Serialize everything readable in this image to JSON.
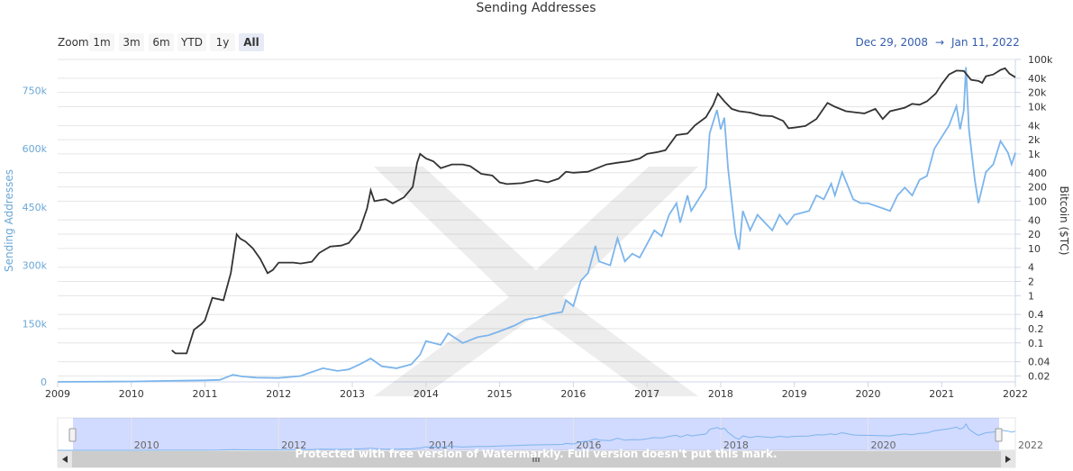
{
  "chart_data": {
    "type": "line",
    "title": "Sending Addresses",
    "range_selector": {
      "label": "Zoom",
      "buttons": [
        "1m",
        "3m",
        "6m",
        "YTD",
        "1y",
        "All"
      ],
      "active": "All"
    },
    "date_range": {
      "from": "Dec 29, 2008",
      "arrow": "→",
      "to": "Jan 11, 2022"
    },
    "x_axis": {
      "ticks": [
        "2009",
        "2010",
        "2011",
        "2012",
        "2013",
        "2014",
        "2015",
        "2016",
        "2017",
        "2018",
        "2019",
        "2020",
        "2021",
        "2022"
      ],
      "range": [
        2009,
        2022
      ]
    },
    "y_axis_left": {
      "label": "Sending Addresses",
      "ticks": [
        "0",
        "150k",
        "300k",
        "450k",
        "600k",
        "750k"
      ],
      "tick_values": [
        0,
        150000,
        300000,
        450000,
        600000,
        750000
      ],
      "range": [
        0,
        830000
      ],
      "color": "#7cb5ec"
    },
    "y_axis_right": {
      "label": "Bitcoin ($TC)",
      "scale": "log",
      "ticks": [
        "0.02",
        "0.04",
        "0.1",
        "0.2",
        "0.4",
        "1",
        "2",
        "4",
        "10",
        "20",
        "40",
        "100",
        "200",
        "400",
        "1k",
        "2k",
        "4k",
        "10k",
        "20k",
        "40k",
        "100k"
      ],
      "tick_values": [
        0.02,
        0.04,
        0.1,
        0.2,
        0.4,
        1,
        2,
        4,
        10,
        20,
        40,
        100,
        200,
        400,
        1000,
        2000,
        4000,
        10000,
        20000,
        40000,
        100000
      ],
      "range": [
        0.015,
        100000
      ],
      "color": "#333333"
    },
    "series": [
      {
        "name": "Sending Addresses",
        "axis": "left",
        "color": "#7cb5ec",
        "points": [
          [
            2009.0,
            0
          ],
          [
            2010.0,
            1000
          ],
          [
            2010.5,
            2500
          ],
          [
            2011.0,
            4000
          ],
          [
            2011.2,
            5000
          ],
          [
            2011.38,
            18000
          ],
          [
            2011.5,
            14000
          ],
          [
            2011.7,
            11000
          ],
          [
            2012.0,
            10000
          ],
          [
            2012.3,
            15000
          ],
          [
            2012.4,
            22000
          ],
          [
            2012.6,
            35000
          ],
          [
            2012.8,
            28000
          ],
          [
            2012.95,
            32000
          ],
          [
            2013.1,
            45000
          ],
          [
            2013.25,
            60000
          ],
          [
            2013.4,
            40000
          ],
          [
            2013.6,
            35000
          ],
          [
            2013.8,
            45000
          ],
          [
            2013.92,
            70000
          ],
          [
            2014.0,
            105000
          ],
          [
            2014.2,
            95000
          ],
          [
            2014.3,
            125000
          ],
          [
            2014.5,
            100000
          ],
          [
            2014.7,
            115000
          ],
          [
            2014.85,
            120000
          ],
          [
            2015.0,
            130000
          ],
          [
            2015.2,
            145000
          ],
          [
            2015.35,
            160000
          ],
          [
            2015.5,
            165000
          ],
          [
            2015.7,
            175000
          ],
          [
            2015.85,
            180000
          ],
          [
            2015.9,
            210000
          ],
          [
            2016.0,
            195000
          ],
          [
            2016.1,
            260000
          ],
          [
            2016.2,
            280000
          ],
          [
            2016.3,
            350000
          ],
          [
            2016.35,
            310000
          ],
          [
            2016.5,
            300000
          ],
          [
            2016.6,
            370000
          ],
          [
            2016.7,
            310000
          ],
          [
            2016.8,
            330000
          ],
          [
            2016.9,
            320000
          ],
          [
            2017.0,
            355000
          ],
          [
            2017.1,
            390000
          ],
          [
            2017.2,
            375000
          ],
          [
            2017.3,
            430000
          ],
          [
            2017.4,
            460000
          ],
          [
            2017.45,
            410000
          ],
          [
            2017.55,
            480000
          ],
          [
            2017.6,
            440000
          ],
          [
            2017.7,
            470000
          ],
          [
            2017.8,
            500000
          ],
          [
            2017.85,
            640000
          ],
          [
            2017.95,
            700000
          ],
          [
            2018.0,
            650000
          ],
          [
            2018.05,
            680000
          ],
          [
            2018.1,
            550000
          ],
          [
            2018.2,
            380000
          ],
          [
            2018.25,
            340000
          ],
          [
            2018.3,
            440000
          ],
          [
            2018.4,
            390000
          ],
          [
            2018.5,
            430000
          ],
          [
            2018.6,
            410000
          ],
          [
            2018.7,
            390000
          ],
          [
            2018.8,
            430000
          ],
          [
            2018.9,
            405000
          ],
          [
            2019.0,
            430000
          ],
          [
            2019.2,
            440000
          ],
          [
            2019.3,
            480000
          ],
          [
            2019.4,
            470000
          ],
          [
            2019.5,
            510000
          ],
          [
            2019.55,
            480000
          ],
          [
            2019.65,
            540000
          ],
          [
            2019.8,
            470000
          ],
          [
            2019.9,
            460000
          ],
          [
            2020.0,
            460000
          ],
          [
            2020.15,
            450000
          ],
          [
            2020.3,
            440000
          ],
          [
            2020.4,
            480000
          ],
          [
            2020.5,
            500000
          ],
          [
            2020.6,
            480000
          ],
          [
            2020.7,
            520000
          ],
          [
            2020.8,
            530000
          ],
          [
            2020.9,
            600000
          ],
          [
            2021.0,
            630000
          ],
          [
            2021.1,
            660000
          ],
          [
            2021.2,
            710000
          ],
          [
            2021.25,
            650000
          ],
          [
            2021.3,
            700000
          ],
          [
            2021.33,
            810000
          ],
          [
            2021.37,
            650000
          ],
          [
            2021.45,
            520000
          ],
          [
            2021.5,
            460000
          ],
          [
            2021.6,
            540000
          ],
          [
            2021.7,
            560000
          ],
          [
            2021.8,
            620000
          ],
          [
            2021.9,
            590000
          ],
          [
            2021.95,
            560000
          ],
          [
            2022.0,
            590000
          ]
        ]
      },
      {
        "name": "Bitcoin",
        "axis": "right",
        "color": "#333333",
        "points": [
          [
            2010.55,
            0.07
          ],
          [
            2010.6,
            0.06
          ],
          [
            2010.7,
            0.06
          ],
          [
            2010.75,
            0.06
          ],
          [
            2010.85,
            0.19
          ],
          [
            2010.95,
            0.25
          ],
          [
            2011.0,
            0.3
          ],
          [
            2011.1,
            0.9
          ],
          [
            2011.25,
            0.8
          ],
          [
            2011.35,
            3
          ],
          [
            2011.43,
            20
          ],
          [
            2011.48,
            16
          ],
          [
            2011.55,
            14
          ],
          [
            2011.65,
            10
          ],
          [
            2011.75,
            6
          ],
          [
            2011.85,
            3
          ],
          [
            2011.92,
            3.5
          ],
          [
            2012.0,
            5
          ],
          [
            2012.2,
            5
          ],
          [
            2012.3,
            4.8
          ],
          [
            2012.45,
            5.2
          ],
          [
            2012.55,
            8
          ],
          [
            2012.7,
            11
          ],
          [
            2012.85,
            11.5
          ],
          [
            2012.95,
            13
          ],
          [
            2013.1,
            25
          ],
          [
            2013.2,
            70
          ],
          [
            2013.25,
            170
          ],
          [
            2013.3,
            100
          ],
          [
            2013.45,
            110
          ],
          [
            2013.55,
            90
          ],
          [
            2013.7,
            120
          ],
          [
            2013.82,
            200
          ],
          [
            2013.88,
            650
          ],
          [
            2013.92,
            1000
          ],
          [
            2014.0,
            800
          ],
          [
            2014.1,
            700
          ],
          [
            2014.2,
            500
          ],
          [
            2014.35,
            600
          ],
          [
            2014.5,
            600
          ],
          [
            2014.6,
            550
          ],
          [
            2014.75,
            380
          ],
          [
            2014.9,
            350
          ],
          [
            2015.0,
            250
          ],
          [
            2015.1,
            230
          ],
          [
            2015.3,
            240
          ],
          [
            2015.5,
            280
          ],
          [
            2015.65,
            250
          ],
          [
            2015.8,
            300
          ],
          [
            2015.9,
            420
          ],
          [
            2016.0,
            400
          ],
          [
            2016.2,
            420
          ],
          [
            2016.45,
            600
          ],
          [
            2016.6,
            650
          ],
          [
            2016.75,
            700
          ],
          [
            2016.9,
            800
          ],
          [
            2017.0,
            1000
          ],
          [
            2017.15,
            1100
          ],
          [
            2017.25,
            1200
          ],
          [
            2017.4,
            2500
          ],
          [
            2017.55,
            2700
          ],
          [
            2017.65,
            4000
          ],
          [
            2017.8,
            6000
          ],
          [
            2017.9,
            11000
          ],
          [
            2017.96,
            19000
          ],
          [
            2018.05,
            13000
          ],
          [
            2018.15,
            9000
          ],
          [
            2018.25,
            8000
          ],
          [
            2018.4,
            7500
          ],
          [
            2018.55,
            6500
          ],
          [
            2018.7,
            6300
          ],
          [
            2018.85,
            5000
          ],
          [
            2018.92,
            3500
          ],
          [
            2019.0,
            3600
          ],
          [
            2019.15,
            3900
          ],
          [
            2019.3,
            5500
          ],
          [
            2019.45,
            12000
          ],
          [
            2019.55,
            10000
          ],
          [
            2019.7,
            8000
          ],
          [
            2019.85,
            7500
          ],
          [
            2019.95,
            7200
          ],
          [
            2020.1,
            9000
          ],
          [
            2020.2,
            5500
          ],
          [
            2020.3,
            8000
          ],
          [
            2020.5,
            9500
          ],
          [
            2020.6,
            11500
          ],
          [
            2020.7,
            11000
          ],
          [
            2020.8,
            13000
          ],
          [
            2020.92,
            19000
          ],
          [
            2021.0,
            30000
          ],
          [
            2021.1,
            48000
          ],
          [
            2021.2,
            58000
          ],
          [
            2021.3,
            57000
          ],
          [
            2021.4,
            37000
          ],
          [
            2021.5,
            35000
          ],
          [
            2021.55,
            32000
          ],
          [
            2021.6,
            44000
          ],
          [
            2021.7,
            48000
          ],
          [
            2021.8,
            60000
          ],
          [
            2021.86,
            65000
          ],
          [
            2021.92,
            50000
          ],
          [
            2022.0,
            42000
          ]
        ]
      }
    ],
    "navigator": {
      "ticks": [
        "2010",
        "2012",
        "2014",
        "2016",
        "2018",
        "2020",
        "2022"
      ]
    },
    "grid": true,
    "legend": "none"
  },
  "watermark": "Protected with free version of Watermarkly. Full version doesn't put this mark."
}
